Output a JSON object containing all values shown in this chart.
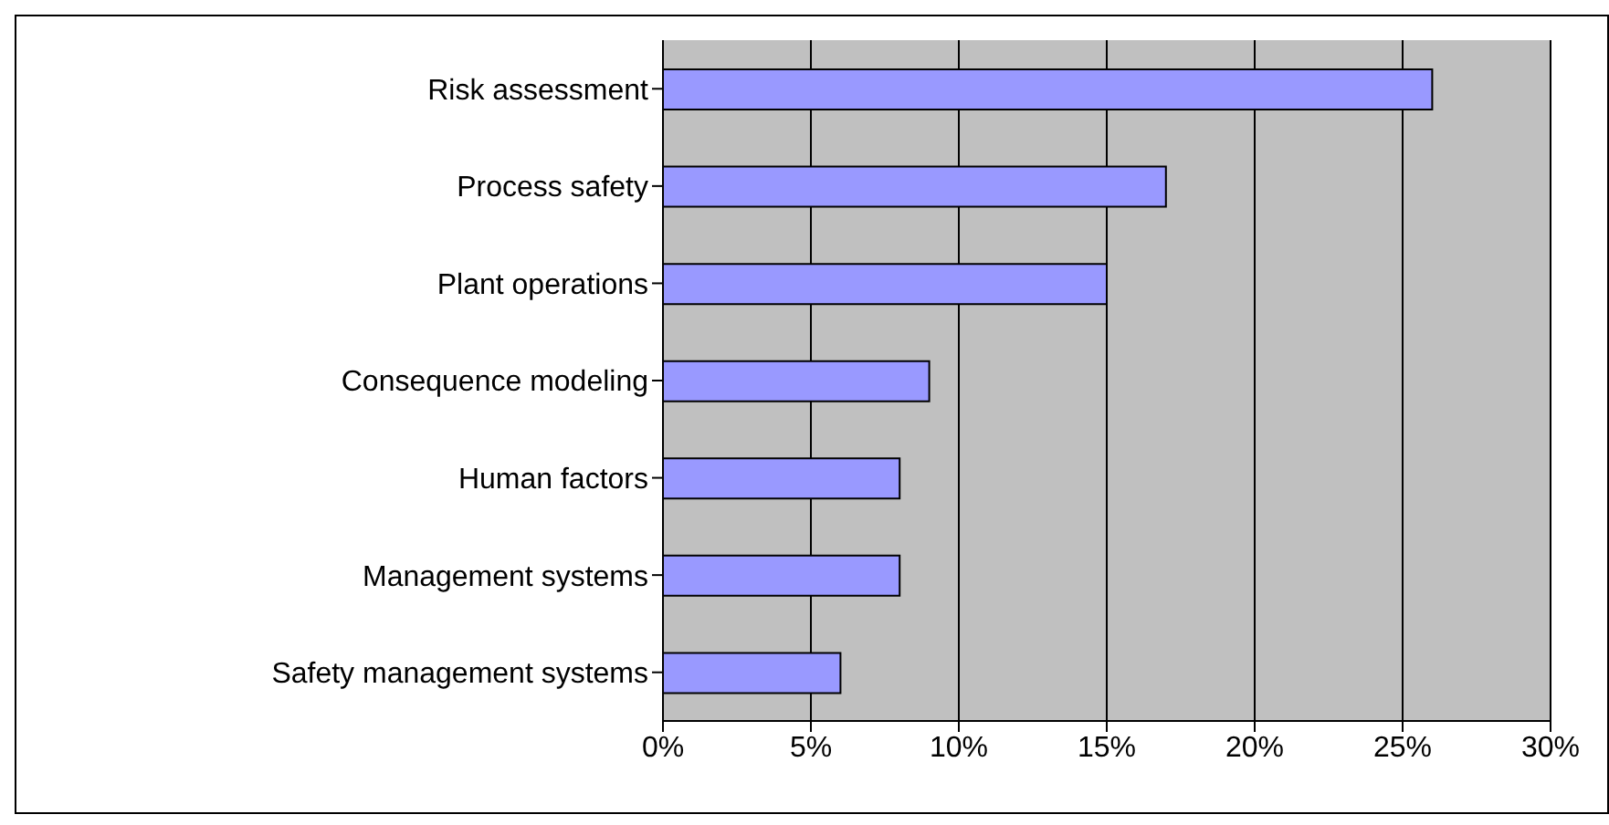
{
  "chart_data": {
    "type": "bar",
    "orientation": "horizontal",
    "categories": [
      "Risk assessment",
      "Process safety",
      "Plant operations",
      "Consequence modeling",
      "Human factors",
      "Management systems",
      "Safety management systems"
    ],
    "values": [
      26,
      17,
      15,
      9,
      8,
      8,
      6
    ],
    "color": "#9999ff",
    "xlim": [
      0,
      30
    ],
    "xticks": [
      {
        "value": 0,
        "label": "0%"
      },
      {
        "value": 5,
        "label": "5%"
      },
      {
        "value": 10,
        "label": "10%"
      },
      {
        "value": 15,
        "label": "15%"
      },
      {
        "value": 20,
        "label": "20%"
      },
      {
        "value": 25,
        "label": "25%"
      },
      {
        "value": 30,
        "label": "30%"
      }
    ],
    "grid": "x",
    "legend": false
  }
}
